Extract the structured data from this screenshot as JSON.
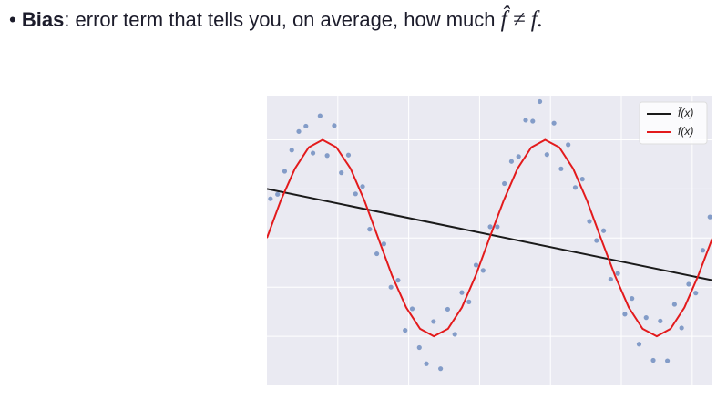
{
  "bullet": {
    "term": "Bias",
    "text": ": error term that tells you, on average, how much ",
    "math": "f̂ ≠ f."
  },
  "chart_data": {
    "type": "scatter",
    "xlim": [
      0,
      12.57
    ],
    "ylim": [
      -3,
      2.9
    ],
    "xticks": [
      2,
      4,
      6,
      8,
      10,
      12
    ],
    "yticks": [
      -2,
      -1,
      0,
      1,
      2
    ],
    "grid": true,
    "legend": "upper right",
    "points": {
      "color": "#4c72b0",
      "x": [
        0.1,
        0.3,
        0.5,
        0.7,
        0.9,
        1.1,
        1.3,
        1.5,
        1.7,
        1.9,
        2.1,
        2.3,
        2.5,
        2.7,
        2.9,
        3.1,
        3.3,
        3.5,
        3.7,
        3.9,
        4.1,
        4.3,
        4.5,
        4.7,
        4.9,
        5.1,
        5.3,
        5.5,
        5.7,
        5.9,
        6.1,
        6.3,
        6.5,
        6.7,
        6.9,
        7.1,
        7.3,
        7.5,
        7.7,
        7.9,
        8.1,
        8.3,
        8.5,
        8.7,
        8.9,
        9.1,
        9.3,
        9.5,
        9.7,
        9.9,
        10.1,
        10.3,
        10.5,
        10.7,
        10.9,
        11.1,
        11.3,
        11.5,
        11.7,
        11.9,
        12.1,
        12.3,
        12.5
      ],
      "values": [
        0.8,
        0.89,
        1.36,
        1.79,
        2.17,
        2.28,
        1.73,
        2.49,
        1.68,
        2.29,
        1.33,
        1.69,
        0.9,
        1.05,
        0.18,
        -0.32,
        -0.12,
        -1.0,
        -0.86,
        -1.88,
        -1.44,
        -2.23,
        -2.56,
        -1.7,
        -2.66,
        -1.45,
        -1.96,
        -1.11,
        -1.3,
        -0.55,
        -0.66,
        0.23,
        0.23,
        1.11,
        1.56,
        1.66,
        2.4,
        2.38,
        2.78,
        1.7,
        2.34,
        1.41,
        1.9,
        1.03,
        1.2,
        0.34,
        -0.05,
        0.15,
        -0.84,
        -0.72,
        -1.55,
        -1.23,
        -2.16,
        -1.62,
        -2.49,
        -1.69,
        -2.5,
        -1.35,
        -1.83,
        -0.94,
        -1.12,
        -0.25,
        0.43
      ]
    },
    "series": [
      {
        "name": "f̂(x)",
        "color": "#1a1a1a",
        "x": [
          0,
          12.57
        ],
        "values": [
          1.0,
          -0.86
        ]
      },
      {
        "name": "f(x)",
        "color": "#e31a1c",
        "x": [
          0,
          0.39,
          0.79,
          1.18,
          1.57,
          1.96,
          2.36,
          2.75,
          3.14,
          3.53,
          3.93,
          4.32,
          4.71,
          5.11,
          5.5,
          5.89,
          6.28,
          6.68,
          7.07,
          7.46,
          7.85,
          8.25,
          8.64,
          9.03,
          9.42,
          9.82,
          10.21,
          10.6,
          11,
          11.39,
          11.78,
          12.17,
          12.57
        ],
        "values": [
          0,
          0.765,
          1.414,
          1.848,
          2,
          1.848,
          1.414,
          0.765,
          0,
          -0.765,
          -1.414,
          -1.848,
          -2,
          -1.848,
          -1.414,
          -0.765,
          0,
          0.765,
          1.414,
          1.848,
          2,
          1.848,
          1.414,
          0.765,
          0,
          -0.765,
          -1.414,
          -1.848,
          -2,
          -1.848,
          -1.414,
          -0.765,
          0
        ]
      }
    ]
  }
}
